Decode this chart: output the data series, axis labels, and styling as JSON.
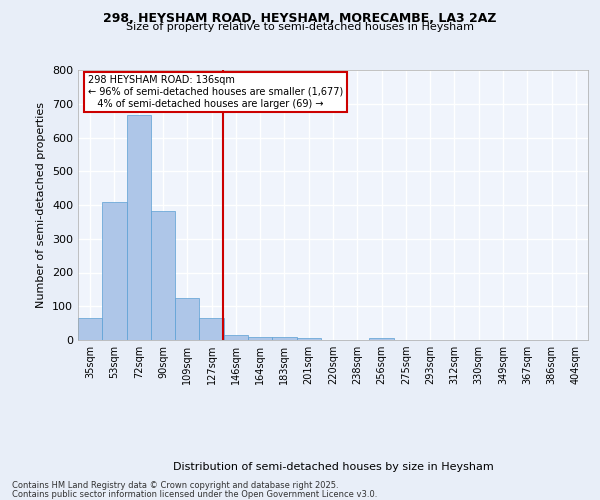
{
  "title_line1": "298, HEYSHAM ROAD, HEYSHAM, MORECAMBE, LA3 2AZ",
  "title_line2": "Size of property relative to semi-detached houses in Heysham",
  "xlabel": "Distribution of semi-detached houses by size in Heysham",
  "ylabel": "Number of semi-detached properties",
  "bin_labels": [
    "35sqm",
    "53sqm",
    "72sqm",
    "90sqm",
    "109sqm",
    "127sqm",
    "146sqm",
    "164sqm",
    "183sqm",
    "201sqm",
    "220sqm",
    "238sqm",
    "256sqm",
    "275sqm",
    "293sqm",
    "312sqm",
    "330sqm",
    "349sqm",
    "367sqm",
    "386sqm",
    "404sqm"
  ],
  "bar_values": [
    65,
    410,
    668,
    383,
    125,
    65,
    15,
    10,
    8,
    7,
    0,
    0,
    5,
    0,
    0,
    0,
    0,
    0,
    0,
    0,
    0
  ],
  "bar_color": "#aec6e8",
  "bar_edge_color": "#5a9fd4",
  "property_line_label": "298 HEYSHAM ROAD: 136sqm",
  "pct_smaller": "96% of semi-detached houses are smaller (1,677)",
  "pct_larger": "4% of semi-detached houses are larger (69)",
  "line_color": "#cc0000",
  "annotation_box_color": "#ffffff",
  "annotation_box_edge": "#cc0000",
  "bg_color": "#e8eef8",
  "plot_bg_color": "#f0f4fc",
  "grid_color": "#ffffff",
  "ylim": [
    0,
    800
  ],
  "yticks": [
    0,
    100,
    200,
    300,
    400,
    500,
    600,
    700,
    800
  ],
  "footer_line1": "Contains HM Land Registry data © Crown copyright and database right 2025.",
  "footer_line2": "Contains public sector information licensed under the Open Government Licence v3.0."
}
